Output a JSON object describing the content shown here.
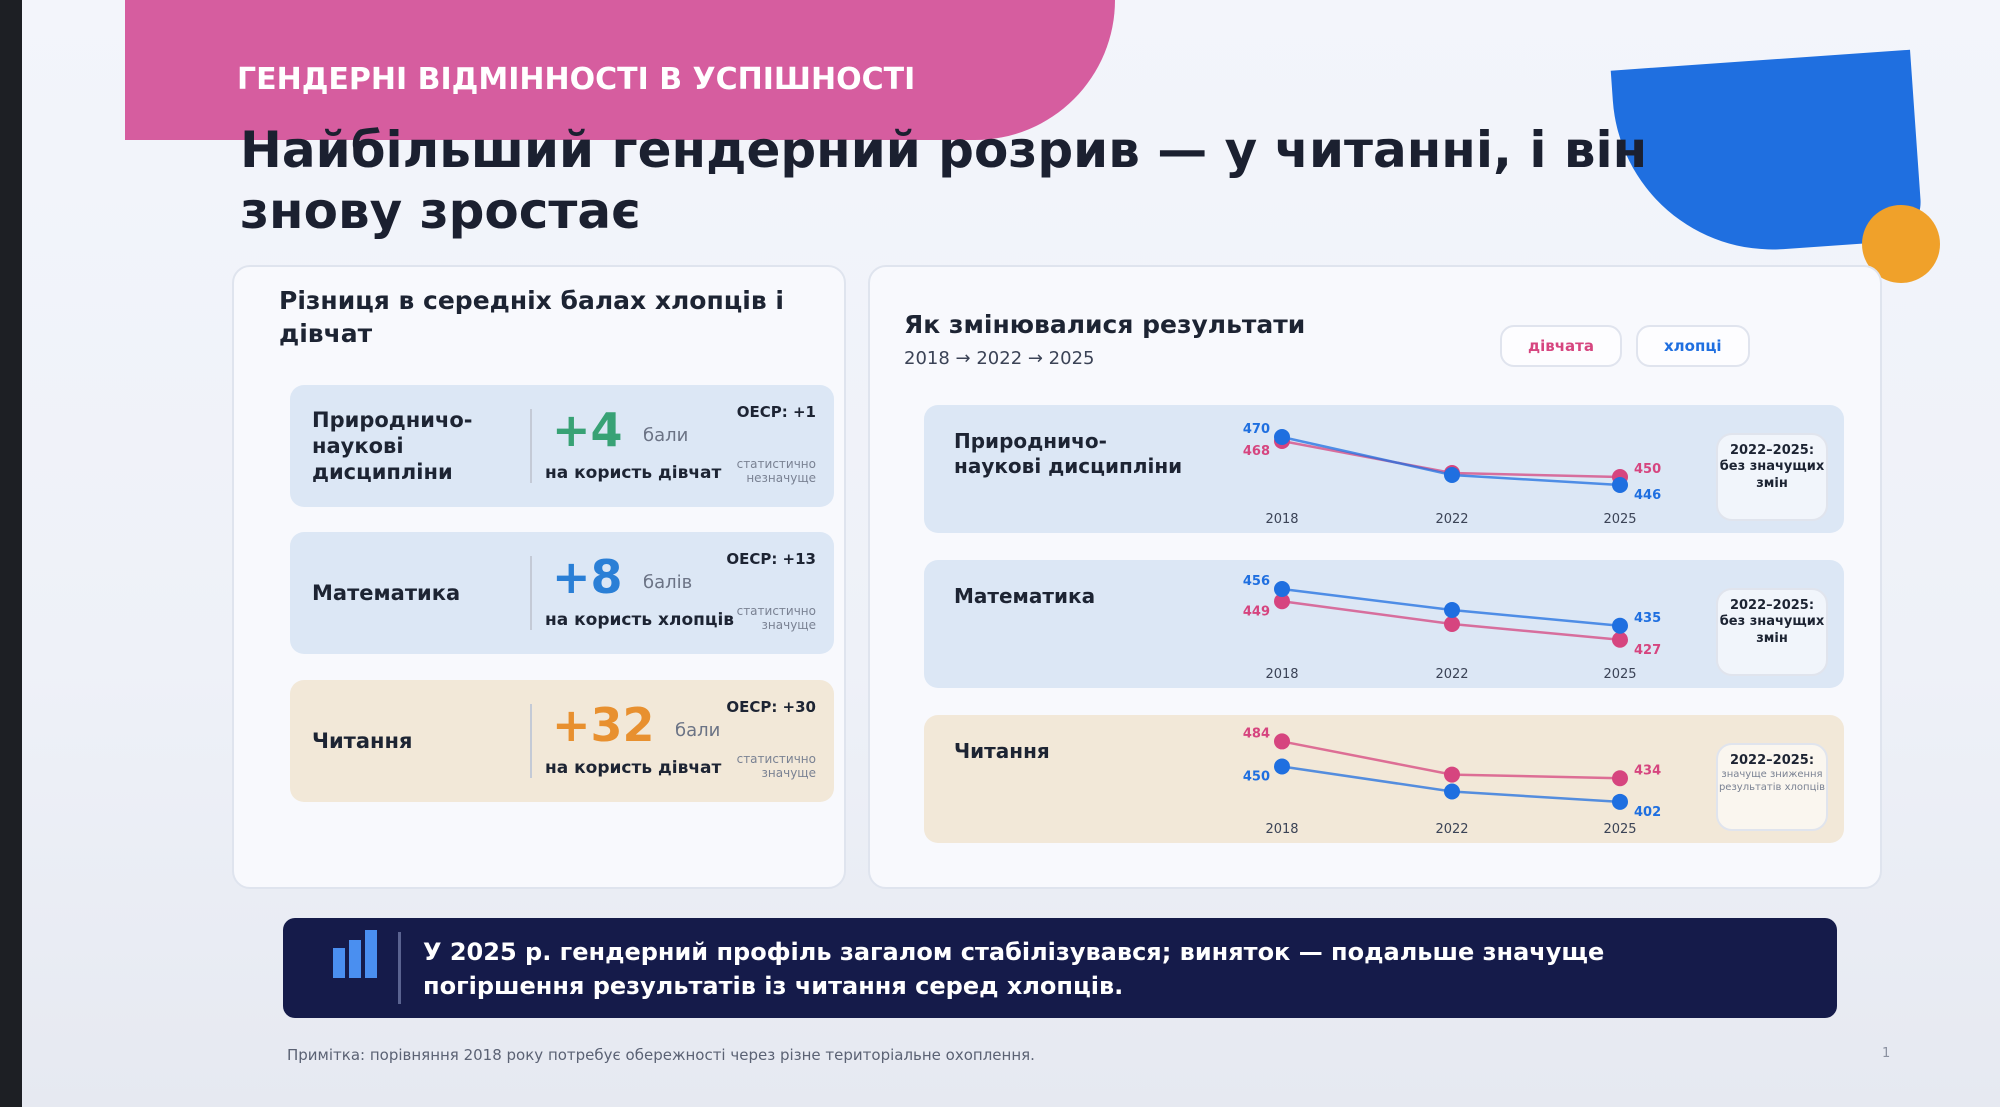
{
  "header": {
    "section": "ГЕНДЕРНІ ВІДМІННОСТІ В УСПІШНОСТІ",
    "title": "Найбільший гендерний розрив — у читанні, і він знову зростає"
  },
  "left_panel": {
    "title": "Різниця в середніх балах хлопців і дівчат",
    "rows": [
      {
        "subject": "Природничо-наукові дисципліни",
        "gap": "+4",
        "unit": "бали",
        "direction": "на користь дівчат",
        "oecd": "ОЕСР: +1",
        "significance": "статистично незначуще"
      },
      {
        "subject": "Математика",
        "gap": "+8",
        "unit": "балів",
        "direction": "на користь хлопців",
        "oecd": "ОЕСР: +13",
        "significance": "статистично значуще"
      },
      {
        "subject": "Читання",
        "gap": "+32",
        "unit": "бали",
        "direction": "на користь дівчат",
        "oecd": "ОЕСР: +30",
        "significance": "статистично значуще"
      }
    ]
  },
  "right_panel": {
    "title": "Як змінювалися результати",
    "subtitle": "2018 → 2022 → 2025",
    "series": [
      {
        "name": "дівчата",
        "color": "#d6457f"
      },
      {
        "name": "хлопці",
        "color": "#1f6fe0"
      }
    ],
    "years": [
      "2018",
      "2022",
      "2025"
    ],
    "rows": [
      {
        "subject": "Природничо-наукові дисципліни",
        "girls": [
          468,
          452,
          450
        ],
        "boys": [
          470,
          451,
          446
        ],
        "ylim": [
          440,
          475
        ],
        "note_title": "2022–2025:",
        "note": "без значущих змін"
      },
      {
        "subject": "Математика",
        "girls": [
          449,
          436,
          427
        ],
        "boys": [
          456,
          444,
          435
        ],
        "ylim": [
          420,
          460
        ],
        "note_title": "2022–2025:",
        "note": "без значущих змін"
      },
      {
        "subject": "Читання",
        "girls": [
          484,
          439,
          434
        ],
        "boys": [
          450,
          416,
          402
        ],
        "ylim": [
          395,
          490
        ],
        "note_title": "2022–2025:",
        "note": "значуще зниження результатів хлопців"
      }
    ]
  },
  "banner": "У 2025 р. гендерний профіль загалом стабілізувався; виняток — подальше значуще погіршення результатів із читання серед хлопців.",
  "footnote": "Примітка: порівняння 2018 року потребує обережності через різне територіальне охоплення.",
  "slide_number": "1"
}
